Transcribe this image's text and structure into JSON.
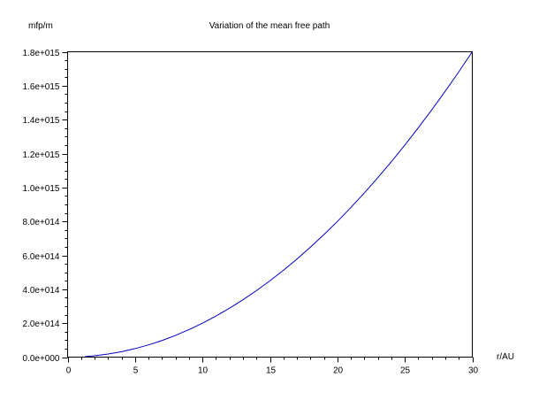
{
  "chart_data": {
    "type": "line",
    "title": "Variation of the mean free path",
    "ylabel": "mfp/m",
    "xlabel": "r/AU",
    "xlim": [
      0,
      30
    ],
    "ylim": [
      0,
      1800000000000000.0
    ],
    "x_ticks": [
      0,
      5,
      10,
      15,
      20,
      25,
      30
    ],
    "x_tick_labels": [
      "0",
      "5",
      "10",
      "15",
      "20",
      "25",
      "30"
    ],
    "y_ticks": [
      0,
      200000000000000.0,
      400000000000000.0,
      600000000000000.0,
      800000000000000.0,
      1000000000000000.0,
      1200000000000000.0,
      1400000000000000.0,
      1600000000000000.0,
      1800000000000000.0
    ],
    "y_tick_labels": [
      "0.0e+000",
      "2.0e+014",
      "4.0e+014",
      "6.0e+014",
      "8.0e+014",
      "1.0e+015",
      "1.2e+015",
      "1.4e+015",
      "1.6e+015",
      "1.8e+015"
    ],
    "grid": false,
    "series": [
      {
        "color": "#0000c0",
        "x": [
          1.3,
          2,
          3,
          4,
          5,
          6,
          7,
          8,
          9,
          10,
          11,
          12,
          13,
          14,
          15,
          16,
          17,
          18,
          19,
          20,
          21,
          22,
          23,
          24,
          25,
          26,
          27,
          28,
          29,
          30
        ],
        "y": [
          3400000000000.0,
          8000000000000.0,
          18000000000000.0,
          32000000000000.0,
          50000000000000.0,
          72000000000000.0,
          98000000000000.0,
          128000000000000.0,
          162000000000000.0,
          200000000000000.0,
          242000000000000.0,
          288000000000000.0,
          338000000000000.0,
          392000000000000.0,
          450000000000000.0,
          512000000000000.0,
          578000000000000.0,
          648000000000000.0,
          722000000000000.0,
          800000000000000.0,
          882000000000000.0,
          968000000000000.0,
          1058000000000000.0,
          1152000000000000.0,
          1250000000000000.0,
          1352000000000000.0,
          1458000000000000.0,
          1568000000000000.0,
          1682000000000000.0,
          1800000000000000.0
        ]
      }
    ]
  }
}
